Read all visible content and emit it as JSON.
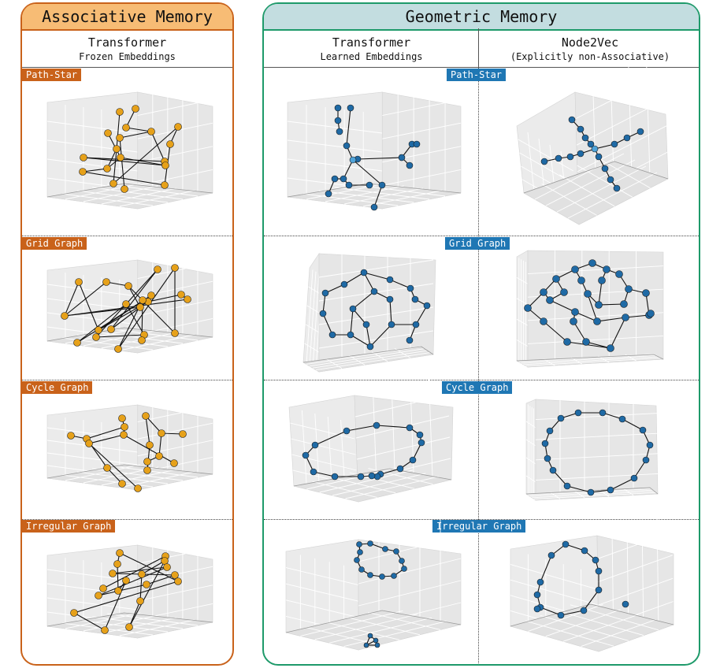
{
  "associative": {
    "title": "Associative Memory",
    "column": {
      "title": "Transformer",
      "subtitle": "Frozen Embeddings"
    },
    "node_color": "#e6a11a",
    "edge_color": "#111111"
  },
  "geometric": {
    "title": "Geometric Memory",
    "columns": [
      {
        "title": "Transformer",
        "subtitle": "Learned Embeddings"
      },
      {
        "title": "Node2Vec",
        "subtitle": "(Explicitly non-Associative)"
      }
    ],
    "node_color": "#1f6aa5",
    "center_node_color": "#4fa3d9"
  },
  "rows": [
    {
      "label": "Path-Star"
    },
    {
      "label": "Grid Graph"
    },
    {
      "label": "Cycle Graph"
    },
    {
      "label": "Irregular Graph"
    }
  ],
  "colors": {
    "associative_border": "#c9621a",
    "associative_header": "#f7bc75",
    "geometric_border": "#1e9a6a",
    "geometric_header": "#c3dde0",
    "tag_orange": "#c9621a",
    "tag_blue": "#1f77b4"
  }
}
